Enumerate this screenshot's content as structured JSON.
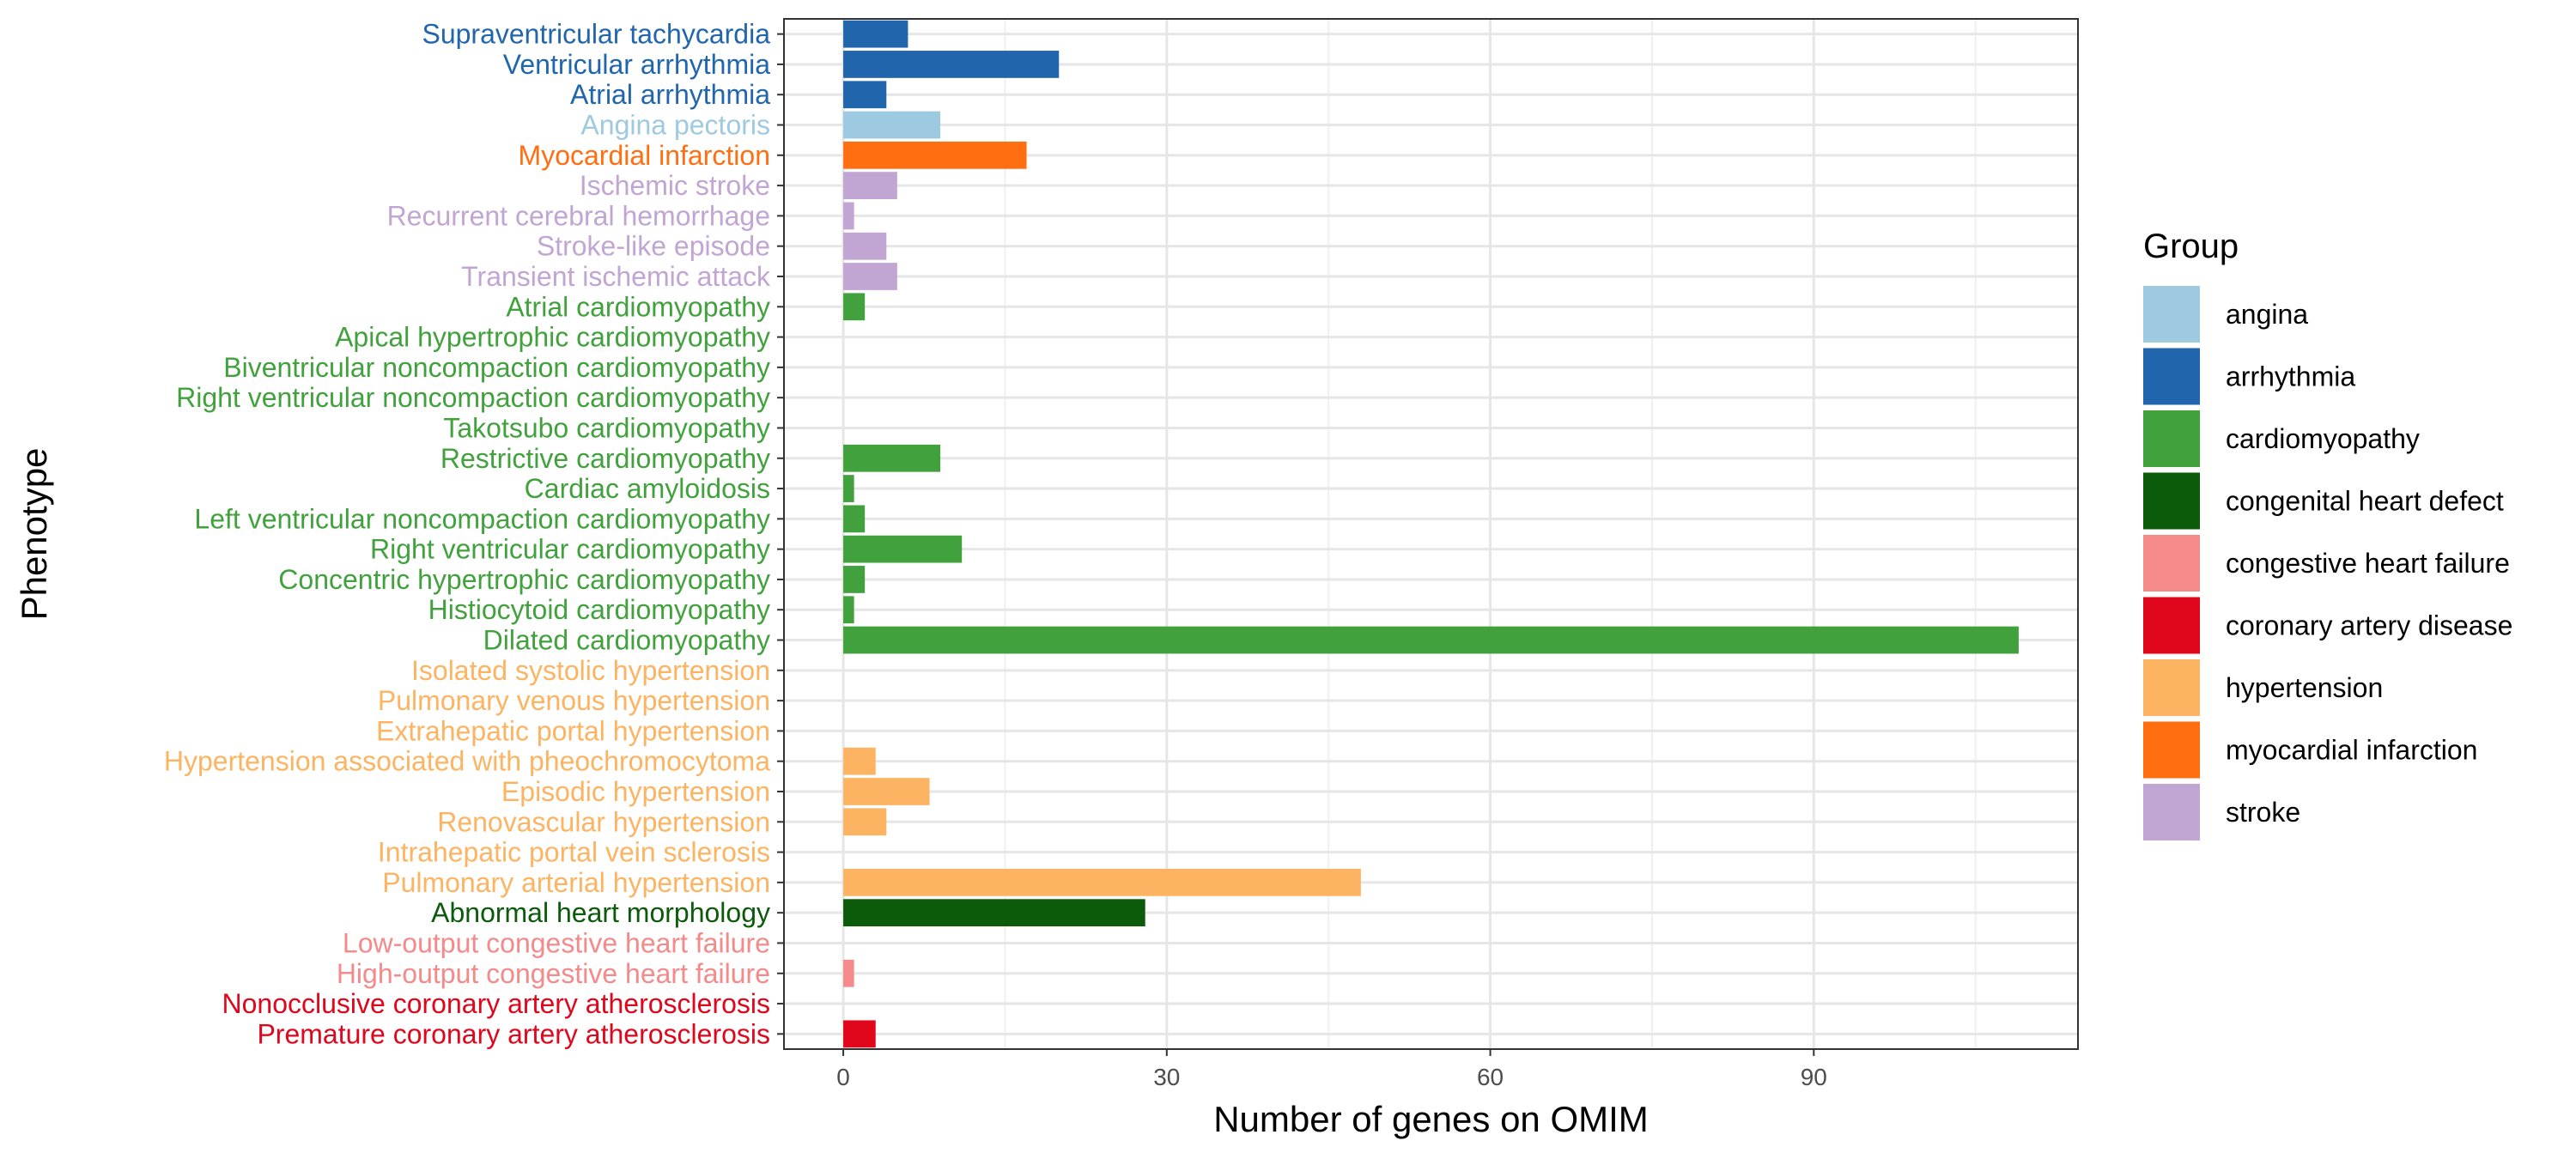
{
  "chart_data": {
    "type": "bar",
    "orientation": "horizontal",
    "xlabel": "Number of genes on OMIM",
    "ylabel": "Phenotype",
    "xlim": [
      -5.5,
      114.5
    ],
    "x_ticks": [
      0,
      30,
      60,
      90
    ],
    "x_tick_labels": [
      "0",
      "30",
      "60",
      "90"
    ],
    "grid": true,
    "legend": {
      "title": "Group",
      "placement": "right",
      "entries": [
        {
          "label": "angina",
          "color": "#9ECAE1"
        },
        {
          "label": "arrhythmia",
          "color": "#2166AC"
        },
        {
          "label": "cardiomyopathy",
          "color": "#41A23D"
        },
        {
          "label": "congenital heart defect",
          "color": "#0B5B0B"
        },
        {
          "label": "congestive heart failure",
          "color": "#F48A8A"
        },
        {
          "label": "coronary artery disease",
          "color": "#E0061B"
        },
        {
          "label": "hypertension",
          "color": "#FDB462"
        },
        {
          "label": "myocardial infarction",
          "color": "#FF6E11"
        },
        {
          "label": "stroke",
          "color": "#C1A5D2"
        }
      ]
    },
    "bars": [
      {
        "category": "Supraventricular tachycardia",
        "group": "arrhythmia",
        "value": 6,
        "color": "#2166AC"
      },
      {
        "category": "Ventricular arrhythmia",
        "group": "arrhythmia",
        "value": 20,
        "color": "#2166AC"
      },
      {
        "category": "Atrial arrhythmia",
        "group": "arrhythmia",
        "value": 4,
        "color": "#2166AC"
      },
      {
        "category": "Angina pectoris",
        "group": "angina",
        "value": 9,
        "color": "#9ECAE1"
      },
      {
        "category": "Myocardial infarction",
        "group": "myocardial infarction",
        "value": 17,
        "color": "#FF6E11"
      },
      {
        "category": "Ischemic stroke",
        "group": "stroke",
        "value": 5,
        "color": "#C1A5D2"
      },
      {
        "category": "Recurrent cerebral hemorrhage",
        "group": "stroke",
        "value": 1,
        "color": "#C1A5D2"
      },
      {
        "category": "Stroke-like episode",
        "group": "stroke",
        "value": 4,
        "color": "#C1A5D2"
      },
      {
        "category": "Transient ischemic attack",
        "group": "stroke",
        "value": 5,
        "color": "#C1A5D2"
      },
      {
        "category": "Atrial cardiomyopathy",
        "group": "cardiomyopathy",
        "value": 2,
        "color": "#41A23D"
      },
      {
        "category": "Apical hypertrophic cardiomyopathy",
        "group": "cardiomyopathy",
        "value": 0,
        "color": "#41A23D"
      },
      {
        "category": "Biventricular noncompaction cardiomyopathy",
        "group": "cardiomyopathy",
        "value": 0,
        "color": "#41A23D"
      },
      {
        "category": "Right ventricular noncompaction cardiomyopathy",
        "group": "cardiomyopathy",
        "value": 0,
        "color": "#41A23D"
      },
      {
        "category": "Takotsubo cardiomyopathy",
        "group": "cardiomyopathy",
        "value": 0,
        "color": "#41A23D"
      },
      {
        "category": "Restrictive cardiomyopathy",
        "group": "cardiomyopathy",
        "value": 9,
        "color": "#41A23D"
      },
      {
        "category": "Cardiac amyloidosis",
        "group": "cardiomyopathy",
        "value": 1,
        "color": "#41A23D"
      },
      {
        "category": "Left ventricular noncompaction cardiomyopathy",
        "group": "cardiomyopathy",
        "value": 2,
        "color": "#41A23D"
      },
      {
        "category": "Right ventricular cardiomyopathy",
        "group": "cardiomyopathy",
        "value": 11,
        "color": "#41A23D"
      },
      {
        "category": "Concentric hypertrophic cardiomyopathy",
        "group": "cardiomyopathy",
        "value": 2,
        "color": "#41A23D"
      },
      {
        "category": "Histiocytoid cardiomyopathy",
        "group": "cardiomyopathy",
        "value": 1,
        "color": "#41A23D"
      },
      {
        "category": "Dilated cardiomyopathy",
        "group": "cardiomyopathy",
        "value": 109,
        "color": "#41A23D"
      },
      {
        "category": "Isolated systolic hypertension",
        "group": "hypertension",
        "value": 0,
        "color": "#FDB462"
      },
      {
        "category": "Pulmonary venous hypertension",
        "group": "hypertension",
        "value": 0,
        "color": "#FDB462"
      },
      {
        "category": "Extrahepatic portal hypertension",
        "group": "hypertension",
        "value": 0,
        "color": "#FDB462"
      },
      {
        "category": "Hypertension associated with pheochromocytoma",
        "group": "hypertension",
        "value": 3,
        "color": "#FDB462"
      },
      {
        "category": "Episodic hypertension",
        "group": "hypertension",
        "value": 8,
        "color": "#FDB462"
      },
      {
        "category": "Renovascular hypertension",
        "group": "hypertension",
        "value": 4,
        "color": "#FDB462"
      },
      {
        "category": "Intrahepatic portal vein sclerosis",
        "group": "hypertension",
        "value": 0,
        "color": "#FDB462"
      },
      {
        "category": "Pulmonary arterial hypertension",
        "group": "hypertension",
        "value": 48,
        "color": "#FDB462"
      },
      {
        "category": "Abnormal heart morphology",
        "group": "congenital heart defect",
        "value": 28,
        "color": "#0B5B0B"
      },
      {
        "category": "Low-output congestive heart failure",
        "group": "congestive heart failure",
        "value": 0,
        "color": "#F48A8A"
      },
      {
        "category": "High-output congestive heart failure",
        "group": "congestive heart failure",
        "value": 1,
        "color": "#F48A8A"
      },
      {
        "category": "Nonocclusive coronary artery atherosclerosis",
        "group": "coronary artery disease",
        "value": 0,
        "color": "#E0061B"
      },
      {
        "category": "Premature coronary artery atherosclerosis",
        "group": "coronary artery disease",
        "value": 3,
        "color": "#E0061B"
      }
    ]
  }
}
